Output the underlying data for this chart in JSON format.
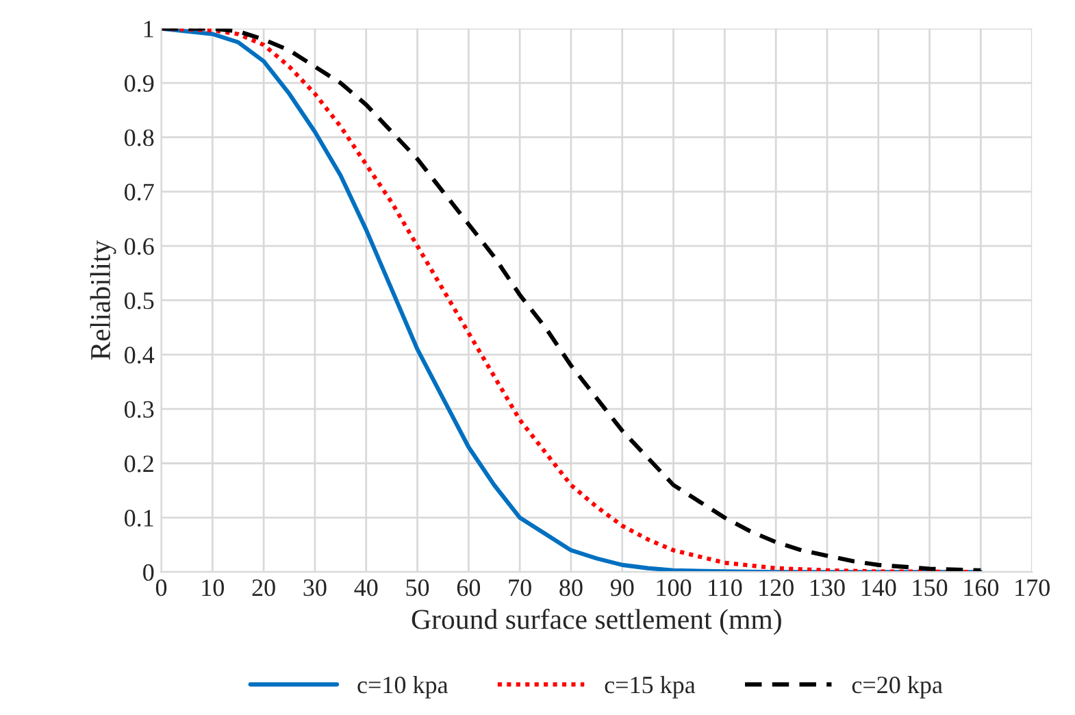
{
  "chart_data": {
    "type": "line",
    "xlabel": "Ground surface settlement (mm)",
    "ylabel": "Reliability",
    "xlim": [
      0,
      170
    ],
    "xticks": [
      0,
      10,
      20,
      30,
      40,
      50,
      60,
      70,
      80,
      90,
      100,
      110,
      120,
      130,
      140,
      150,
      160,
      170
    ],
    "ylim": [
      0,
      1
    ],
    "yticks": [
      0,
      0.1,
      0.2,
      0.3,
      0.4,
      0.5,
      0.6,
      0.7,
      0.8,
      0.9,
      1
    ],
    "grid": true,
    "legend": "bottom",
    "marker": "none",
    "series": [
      {
        "name": "c=10 kpa",
        "color": "#0070c0",
        "line_style": "solid",
        "x": [
          0,
          10,
          15,
          20,
          25,
          30,
          35,
          40,
          45,
          50,
          55,
          60,
          65,
          70,
          75,
          80,
          85,
          90,
          95,
          100,
          110,
          120,
          160
        ],
        "values": [
          1,
          0.99,
          0.975,
          0.94,
          0.88,
          0.81,
          0.73,
          0.63,
          0.52,
          0.41,
          0.32,
          0.23,
          0.16,
          0.1,
          0.07,
          0.04,
          0.025,
          0.013,
          0.007,
          0.003,
          0.001,
          0,
          0
        ]
      },
      {
        "name": "c=15 kpa",
        "color": "#ff0000",
        "line_style": "dotted",
        "x": [
          0,
          10,
          15,
          20,
          25,
          30,
          35,
          40,
          45,
          50,
          55,
          60,
          65,
          70,
          75,
          80,
          85,
          90,
          95,
          100,
          110,
          120,
          130,
          140,
          160
        ],
        "values": [
          1,
          0.997,
          0.99,
          0.97,
          0.93,
          0.88,
          0.82,
          0.75,
          0.68,
          0.6,
          0.52,
          0.44,
          0.36,
          0.28,
          0.22,
          0.16,
          0.12,
          0.085,
          0.06,
          0.04,
          0.017,
          0.007,
          0.003,
          0.001,
          0
        ]
      },
      {
        "name": "c=20 kpa",
        "color": "#000000",
        "line_style": "dashed",
        "x": [
          0,
          10,
          15,
          20,
          25,
          30,
          35,
          40,
          45,
          50,
          55,
          60,
          65,
          70,
          75,
          80,
          85,
          90,
          95,
          100,
          105,
          110,
          115,
          120,
          125,
          130,
          135,
          140,
          150,
          160
        ],
        "values": [
          1,
          1,
          0.995,
          0.98,
          0.96,
          0.93,
          0.9,
          0.86,
          0.81,
          0.76,
          0.7,
          0.64,
          0.58,
          0.51,
          0.45,
          0.38,
          0.32,
          0.26,
          0.21,
          0.16,
          0.13,
          0.1,
          0.075,
          0.055,
          0.04,
          0.03,
          0.02,
          0.013,
          0.006,
          0.003
        ]
      }
    ]
  }
}
